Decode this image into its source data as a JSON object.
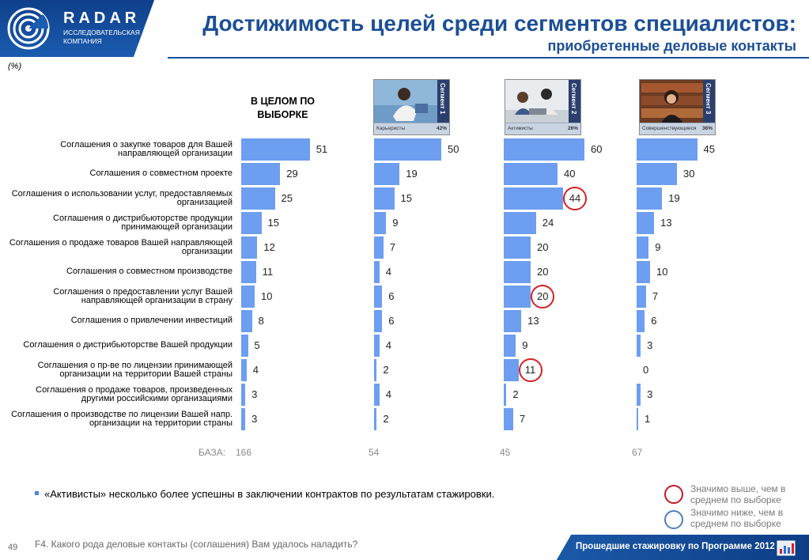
{
  "brand": {
    "name": "RADAR",
    "sub_line1": "ИССЛЕДОВАТЕЛЬСКАЯ",
    "sub_line2": "КОМПАНИЯ"
  },
  "title": {
    "line1": "Достижимость целей среди сегментов специалистов:",
    "line2": "приобретенные деловые контакты"
  },
  "unit_note": "(%)",
  "overall_header": "В ЦЕЛОМ ПО ВЫБОРКЕ",
  "segments": [
    {
      "tag": "Сегмент 1",
      "name": "Карьеристы",
      "share": "42%"
    },
    {
      "tag": "Сегмент 2",
      "name": "Активисты",
      "share": "26%"
    },
    {
      "tag": "Сегмент 3",
      "name": "Совершенствующиеся",
      "share": "36%"
    }
  ],
  "chart_data": {
    "type": "bar",
    "orientation": "horizontal",
    "unit": "%",
    "categories": [
      "Соглашения о закупке товаров для Вашей направляющей организации",
      "Соглашения о совместном проекте",
      "Соглашения о использовании услуг, предоставляемых организацией",
      "Соглашения о дистрибьюторстве продукции принимающей организации",
      "Соглашения о продаже товаров Вашей направляющей организации",
      "Соглашения о совместном производстве",
      "Соглашения о предоставлении услуг Вашей направляющей организации в страну",
      "Соглашения о привлечении инвестиций",
      "Соглашения о дистрибьюторстве Вашей продукции",
      "Соглашения о пр-ве по лицензии принимающей организации на территории Вашей страны",
      "Соглашения о продаже товаров, произведенных другими российскими организациями",
      "Соглашения о производстве по лицензии Вашей напр. организации на территории страны"
    ],
    "series": [
      {
        "name": "В ЦЕЛОМ ПО ВЫБОРКЕ",
        "values": [
          51,
          29,
          25,
          15,
          12,
          11,
          10,
          8,
          5,
          4,
          3,
          3
        ],
        "base": 166,
        "significance": [
          null,
          null,
          null,
          null,
          null,
          null,
          null,
          null,
          null,
          null,
          null,
          null
        ]
      },
      {
        "name": "Карьеристы",
        "values": [
          50,
          19,
          15,
          9,
          7,
          4,
          6,
          6,
          4,
          2,
          4,
          2
        ],
        "base": 54,
        "significance": [
          null,
          null,
          null,
          null,
          null,
          null,
          null,
          null,
          null,
          null,
          null,
          null
        ]
      },
      {
        "name": "Активисты",
        "values": [
          60,
          40,
          44,
          24,
          20,
          20,
          20,
          13,
          9,
          11,
          2,
          7
        ],
        "base": 45,
        "significance": [
          null,
          null,
          "higher",
          null,
          null,
          null,
          "higher",
          null,
          null,
          "higher",
          null,
          null
        ]
      },
      {
        "name": "Совершенствующиеся",
        "values": [
          45,
          30,
          19,
          13,
          9,
          10,
          7,
          6,
          3,
          0,
          3,
          1
        ],
        "base": 67,
        "significance": [
          null,
          null,
          null,
          null,
          null,
          null,
          null,
          null,
          null,
          null,
          null,
          null
        ]
      }
    ],
    "xlim": [
      0,
      100
    ],
    "base_label": "БАЗА:",
    "legend": {
      "higher": "Значимо выше, чем в среднем по выборке",
      "lower": "Значимо ниже, чем в среднем по выборке"
    },
    "colors": {
      "bar": "#6d9ef0",
      "higher": "#d62026",
      "lower": "#4b7fbd"
    }
  },
  "note": "«Активисты» несколько более успешны в заключении контрактов по результатам стажировки.",
  "footer": {
    "page_number": "49",
    "question": "F4. Какого рода деловые контакты (соглашения) Вам удалось наладить?",
    "program": "Прошедшие стажировку по Программе 2012"
  }
}
